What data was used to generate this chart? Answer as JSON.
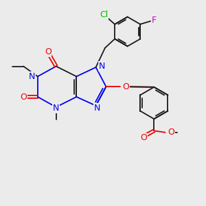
{
  "background_color": "#ebebeb",
  "bond_color": "#1a1a1a",
  "n_color": "#0000ee",
  "o_color": "#ee0000",
  "cl_color": "#00bb00",
  "f_color": "#cc00cc",
  "figsize": [
    3.0,
    3.0
  ],
  "dpi": 100,
  "xlim": [
    0,
    10
  ],
  "ylim": [
    0,
    10
  ]
}
